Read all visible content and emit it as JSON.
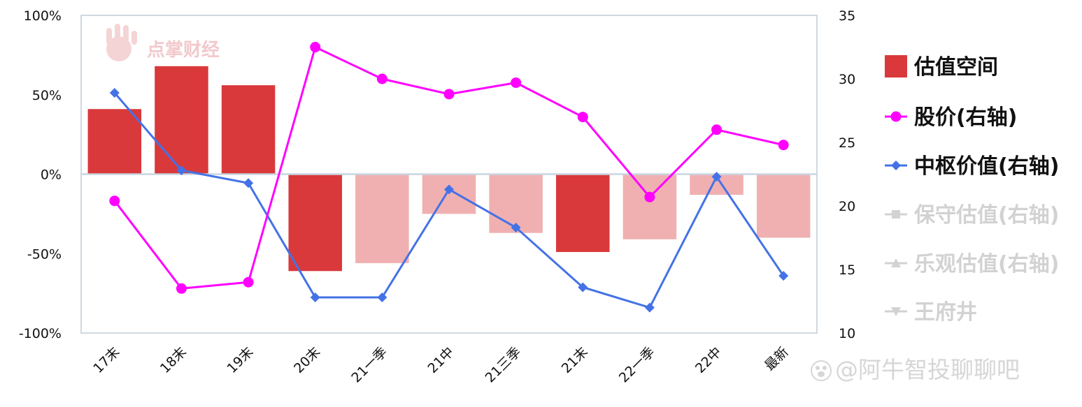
{
  "chart_data": {
    "type": "bar",
    "categories": [
      "17末",
      "18末",
      "19末",
      "20末",
      "21一季",
      "21中",
      "21三季",
      "21末",
      "22一季",
      "22中",
      "最新"
    ],
    "left_axis": {
      "min": -100,
      "max": 100,
      "ticks": [
        "100%",
        "50%",
        "0%",
        "-50%",
        "-100%"
      ]
    },
    "right_axis": {
      "min": 10,
      "max": 35,
      "ticks": [
        "35",
        "30",
        "25",
        "20",
        "15",
        "10"
      ]
    },
    "series": [
      {
        "name": "估值空间",
        "kind": "bar",
        "axis": "left",
        "values": [
          41,
          68,
          56,
          -61,
          -56,
          -25,
          -37,
          -49,
          -41,
          -13,
          -40
        ],
        "highlight": [
          true,
          true,
          true,
          true,
          false,
          false,
          false,
          true,
          false,
          false,
          false
        ]
      },
      {
        "name": "股价(右轴)",
        "kind": "line",
        "axis": "right",
        "marker": "circle",
        "values": [
          20.4,
          13.5,
          14.0,
          32.5,
          30.0,
          28.8,
          29.7,
          27.0,
          20.7,
          26.0,
          24.8
        ]
      },
      {
        "name": "中枢价值(右轴)",
        "kind": "line",
        "axis": "right",
        "marker": "diamond",
        "values": [
          28.9,
          22.8,
          21.8,
          12.8,
          12.8,
          21.3,
          18.3,
          13.6,
          12.0,
          22.3,
          14.5
        ]
      }
    ],
    "legend": {
      "placement": "right",
      "entries": [
        {
          "label": "估值空间",
          "marker": "square",
          "state": "active"
        },
        {
          "label": "股价(右轴)",
          "marker": "circle",
          "state": "active"
        },
        {
          "label": "中枢价值(右轴)",
          "marker": "diamond",
          "state": "active"
        },
        {
          "label": "保守估值(右轴)",
          "marker": "square",
          "state": "inactive"
        },
        {
          "label": "乐观估值(右轴)",
          "marker": "triangle-up",
          "state": "inactive"
        },
        {
          "label": "王府井",
          "marker": "triangle-down",
          "state": "inactive"
        }
      ]
    }
  },
  "colors": {
    "bar_strong": "#d9393b",
    "bar_light": "#f0b0b1",
    "price_line": "#ff00ff",
    "core_line": "#4472e6",
    "axis": "#bfcbd6",
    "legend_active": "#111111",
    "legend_inactive": "#d2d2d2"
  },
  "watermarks": {
    "logo_text": "点掌财经",
    "weibo": "@阿牛智投聊聊吧"
  }
}
